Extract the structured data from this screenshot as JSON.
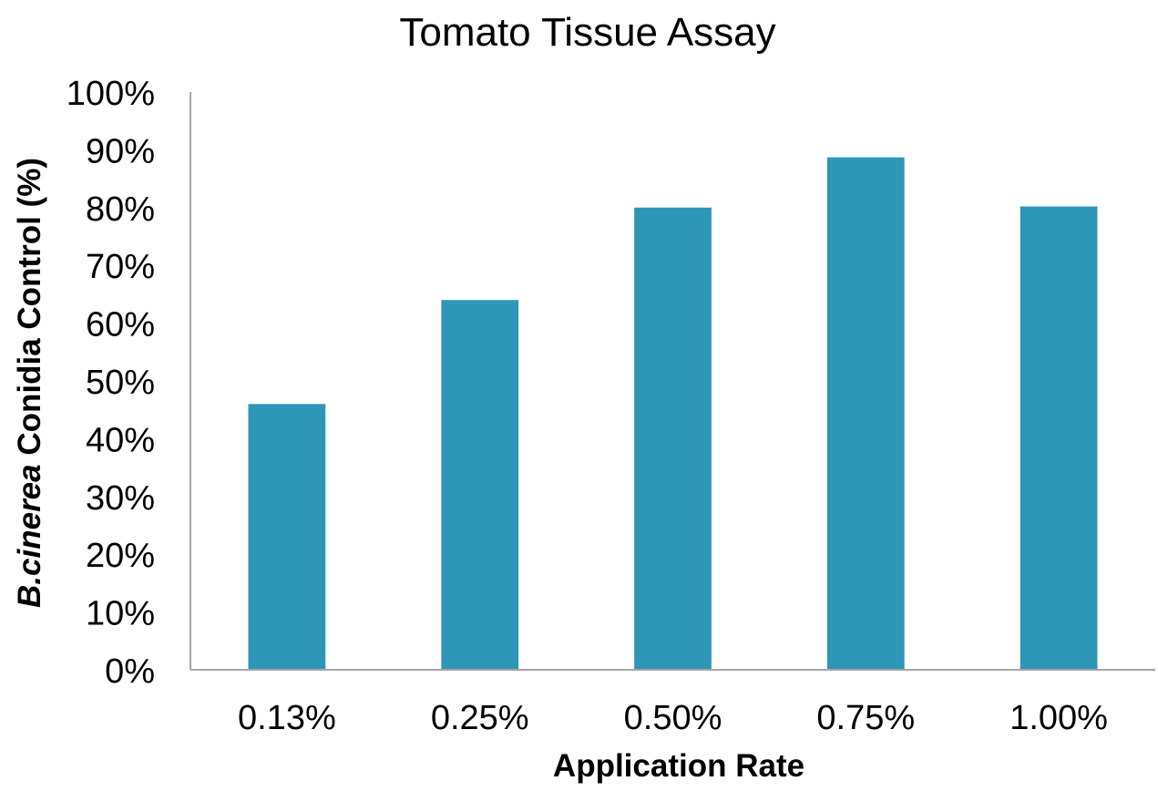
{
  "chart_data": {
    "type": "bar",
    "title": "Tomato Tissue Assay",
    "ylabel_italic": "B.cinerea",
    "ylabel_rest": " Conidia Control (%)",
    "xlabel": "Application Rate",
    "categories": [
      "0.13%",
      "0.25%",
      "0.50%",
      "0.75%",
      "1.00%"
    ],
    "values": [
      46,
      64,
      80,
      88.7,
      80.2
    ],
    "ylim": [
      0,
      100
    ],
    "y_ticks": [
      0,
      10,
      20,
      30,
      40,
      50,
      60,
      70,
      80,
      90,
      100
    ],
    "y_tick_labels": [
      "0%",
      "10%",
      "20%",
      "30%",
      "40%",
      "50%",
      "60%",
      "70%",
      "80%",
      "90%",
      "100%"
    ],
    "grid": false,
    "legend": "none",
    "colors": {
      "bar": "#2e96b6",
      "axis": "#a6a6a6"
    }
  }
}
